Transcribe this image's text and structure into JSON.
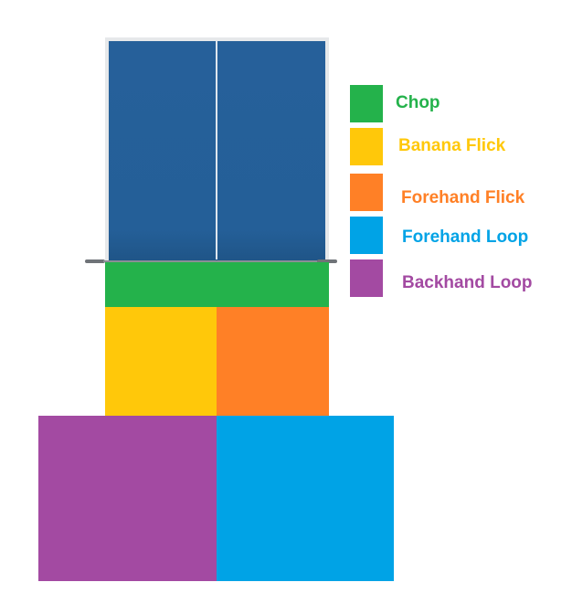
{
  "colors": {
    "chop": "#24b24b",
    "banana_flick": "#ffc80a",
    "forehand_flick": "#ff8026",
    "forehand_loop": "#00a3e6",
    "backhand_loop": "#a34aa2",
    "table": "#245f98"
  },
  "legend": {
    "items": [
      {
        "label": "Chop",
        "color": "#24b24b"
      },
      {
        "label": "Banana Flick",
        "color": "#ffc80a"
      },
      {
        "label": "Forehand Flick",
        "color": "#ff8026"
      },
      {
        "label": "Forehand Loop",
        "color": "#00a3e6"
      },
      {
        "label": "Backhand Loop",
        "color": "#a34aa2"
      }
    ]
  },
  "zones": [
    {
      "stroke": "Chop",
      "color": "#24b24b"
    },
    {
      "stroke": "Banana Flick",
      "color": "#ffc80a"
    },
    {
      "stroke": "Forehand Flick",
      "color": "#ff8026"
    },
    {
      "stroke": "Backhand Loop",
      "color": "#a34aa2"
    },
    {
      "stroke": "Forehand Loop",
      "color": "#00a3e6"
    }
  ]
}
